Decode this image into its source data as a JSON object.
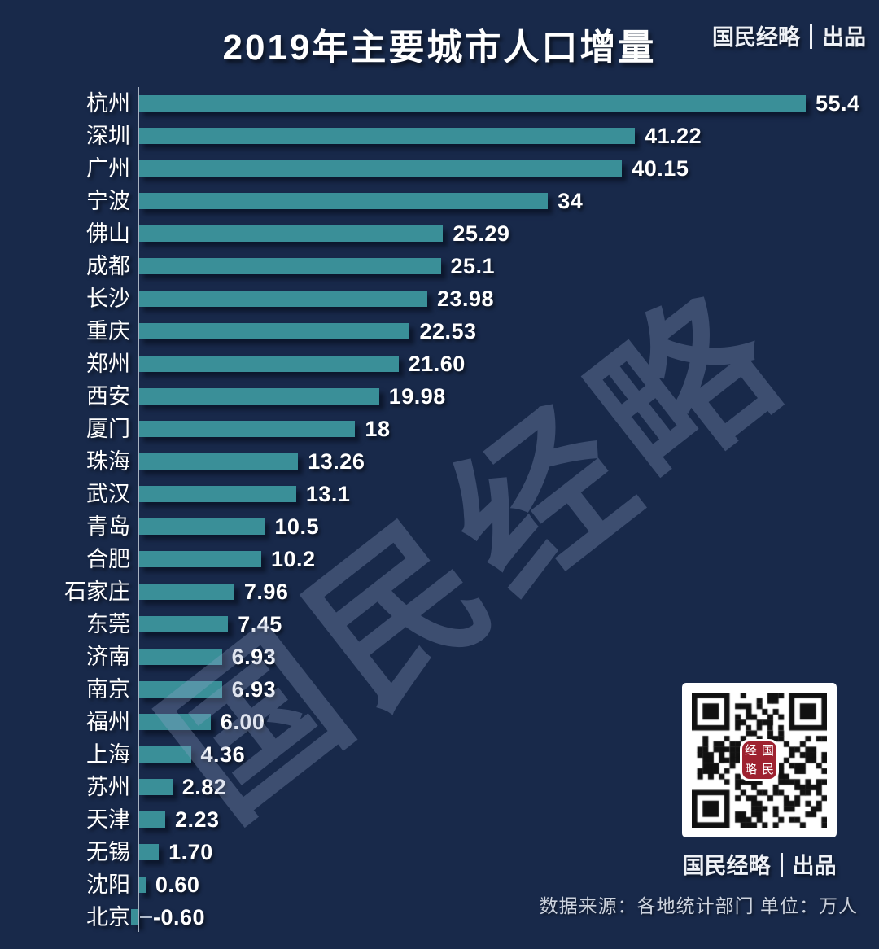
{
  "title": "2019年主要城市人口增量",
  "brand": {
    "name": "国民经略",
    "suffix": "出品"
  },
  "watermark": "国民经略",
  "source_note": "数据来源：各地统计部门  单位：万人",
  "qr": {
    "logo_chars": [
      "经",
      "国",
      "略",
      "民"
    ]
  },
  "colors": {
    "background": "#18294A",
    "bar": "#3A8F98",
    "text": "#FFFFFF",
    "axis": "#A8B2C2",
    "logo_red": "#9E2230",
    "watermark": "rgba(150,167,203,0.30)"
  },
  "chart_data": {
    "type": "bar",
    "orientation": "horizontal",
    "title": "2019年主要城市人口增量",
    "unit": "万人",
    "legend": "none",
    "grid": false,
    "xlim": [
      -0.6,
      58
    ],
    "categories": [
      "杭州",
      "深圳",
      "广州",
      "宁波",
      "佛山",
      "成都",
      "长沙",
      "重庆",
      "郑州",
      "西安",
      "厦门",
      "珠海",
      "武汉",
      "青岛",
      "合肥",
      "石家庄",
      "东莞",
      "济南",
      "南京",
      "福州",
      "上海",
      "苏州",
      "天津",
      "无锡",
      "沈阳",
      "北京"
    ],
    "values": [
      55.4,
      41.22,
      40.15,
      34,
      25.29,
      25.1,
      23.98,
      22.53,
      21.6,
      19.98,
      18,
      13.26,
      13.1,
      10.5,
      10.2,
      7.96,
      7.45,
      6.93,
      6.93,
      6.0,
      4.36,
      2.82,
      2.23,
      1.7,
      0.6,
      -0.6
    ],
    "value_labels": [
      "55.4",
      "41.22",
      "40.15",
      "34",
      "25.29",
      "25.1",
      "23.98",
      "22.53",
      "21.60",
      "19.98",
      "18",
      "13.26",
      "13.1",
      "10.5",
      "10.2",
      "7.96",
      "7.45",
      "6.93",
      "6.93",
      "6.00",
      "4.36",
      "2.82",
      "2.23",
      "1.70",
      "0.60",
      "-0.60"
    ]
  }
}
